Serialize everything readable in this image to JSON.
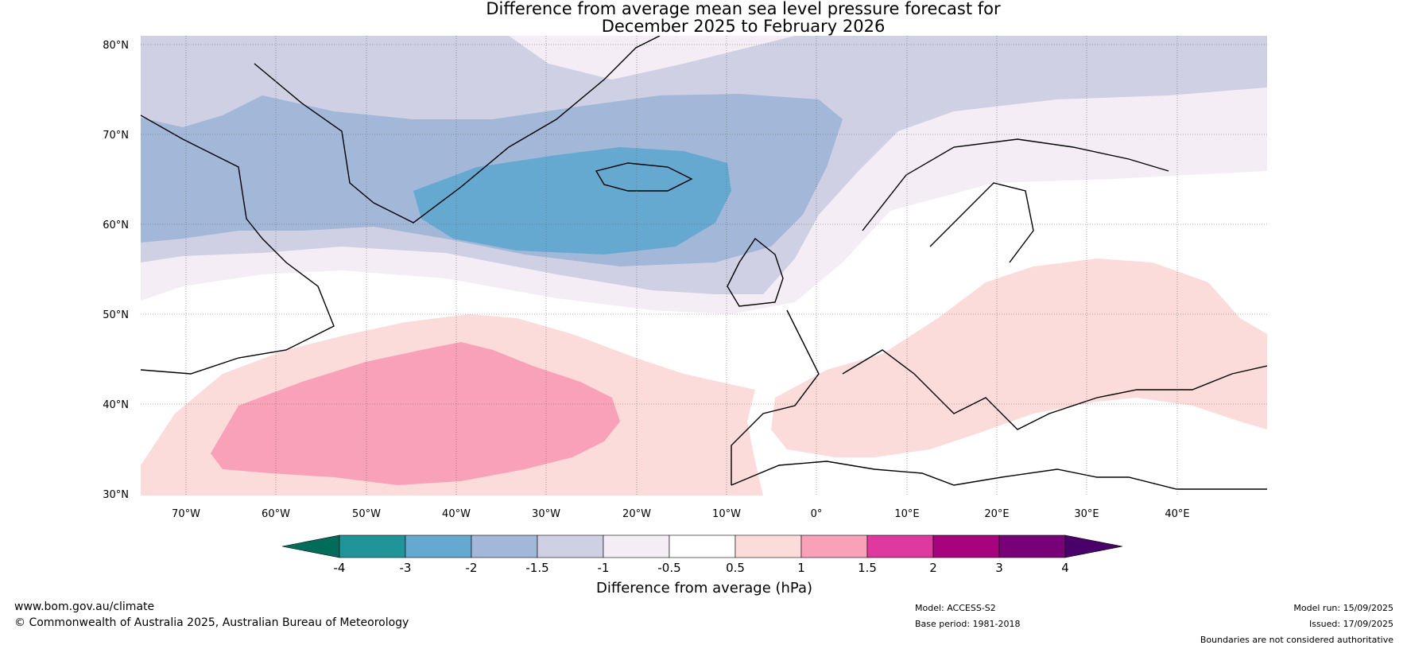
{
  "title_line1": "Difference from average mean sea level pressure forecast for",
  "title_line2": "December 2025 to February 2026",
  "lat_labels": [
    "80°N",
    "70°N",
    "60°N",
    "50°N",
    "40°N",
    "30°N"
  ],
  "lon_labels": [
    "70°W",
    "60°W",
    "50°W",
    "40°W",
    "30°W",
    "20°W",
    "10°W",
    "0°",
    "10°E",
    "20°E",
    "30°E",
    "40°E"
  ],
  "colorbar": {
    "label": "Difference from average (hPa)",
    "tick_labels": [
      "-4",
      "-3",
      "-2",
      "-1.5",
      "-1",
      "-0.5",
      "0.5",
      "1",
      "1.5",
      "2",
      "3",
      "4"
    ],
    "colors": [
      "#1f9499",
      "#65a9d0",
      "#a3b7d9",
      "#d0d0e5",
      "#f4edf5",
      "#ffffff",
      "#fbdcdb",
      "#f9a1b9",
      "#df389e",
      "#a8037d",
      "#790178"
    ],
    "extend_low_color": "#016c59",
    "extend_high_color": "#49006a"
  },
  "map": {
    "extent": {
      "lon_min": -75,
      "lon_max": 50,
      "lat_min": 30,
      "lat_max": 81
    },
    "ocean_color": "#ffffff"
  },
  "footer": {
    "website": "www.bom.gov.au/climate",
    "copyright": "© Commonwealth of Australia 2025, Australian Bureau of Meteorology",
    "model": "Model: ACCESS-S2",
    "base_period": "Base period: 1981-2018",
    "model_run": "Model run: 15/09/2025",
    "issued": "Issued: 17/09/2025",
    "disclaimer": "Boundaries are not considered authoritative"
  }
}
